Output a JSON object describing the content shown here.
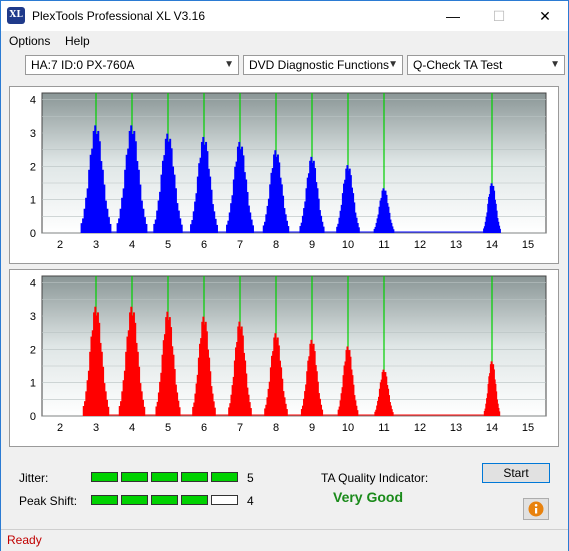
{
  "window": {
    "title": "PlexTools Professional XL V3.16",
    "minimize": "—",
    "maximize": "☐",
    "close": "✕"
  },
  "menu": {
    "options": "Options",
    "help": "Help"
  },
  "selects": {
    "drive": "HA:7 ID:0  PX-760A",
    "function": "DVD Diagnostic Functions",
    "test": "Q-Check TA Test"
  },
  "colors": {
    "top_bars": "#0000ff",
    "bottom_bars": "#ff0000",
    "peak_lines": "#00d000"
  },
  "chart_data": [
    {
      "type": "bar",
      "series_color": "#0000ff",
      "x_ticks": [
        "2",
        "3",
        "4",
        "5",
        "6",
        "7",
        "8",
        "9",
        "10",
        "11",
        "12",
        "13",
        "14",
        "15"
      ],
      "y_ticks": [
        "0",
        "0.5",
        "1",
        "1.5",
        "2",
        "2.5",
        "3",
        "3.5",
        "4"
      ],
      "xlim": [
        1.5,
        15.5
      ],
      "ylim": [
        0,
        4.2
      ],
      "peaks": [
        3,
        4,
        5,
        6,
        7,
        8,
        9,
        10,
        11,
        14
      ],
      "clusters": [
        {
          "x": 3,
          "peak": 3.25,
          "width": 0.4
        },
        {
          "x": 4,
          "peak": 3.25,
          "width": 0.4
        },
        {
          "x": 5,
          "peak": 3.0,
          "width": 0.38
        },
        {
          "x": 6,
          "peak": 2.9,
          "width": 0.36
        },
        {
          "x": 7,
          "peak": 2.75,
          "width": 0.36
        },
        {
          "x": 8,
          "peak": 2.5,
          "width": 0.34
        },
        {
          "x": 9,
          "peak": 2.3,
          "width": 0.32
        },
        {
          "x": 10,
          "peak": 2.05,
          "width": 0.3
        },
        {
          "x": 11,
          "peak": 1.35,
          "width": 0.26
        },
        {
          "x": 14,
          "peak": 1.5,
          "width": 0.22
        }
      ]
    },
    {
      "type": "bar",
      "series_color": "#ff0000",
      "x_ticks": [
        "2",
        "3",
        "4",
        "5",
        "6",
        "7",
        "8",
        "9",
        "10",
        "11",
        "12",
        "13",
        "14",
        "15"
      ],
      "y_ticks": [
        "0",
        "0.5",
        "1",
        "1.5",
        "2",
        "2.5",
        "3",
        "3.5",
        "4"
      ],
      "xlim": [
        1.5,
        15.5
      ],
      "ylim": [
        0,
        4.2
      ],
      "peaks": [
        3,
        4,
        5,
        6,
        7,
        8,
        9,
        10,
        11,
        14
      ],
      "clusters": [
        {
          "x": 3,
          "peak": 3.3,
          "width": 0.34
        },
        {
          "x": 4,
          "peak": 3.3,
          "width": 0.34
        },
        {
          "x": 5,
          "peak": 3.15,
          "width": 0.32
        },
        {
          "x": 6,
          "peak": 3.0,
          "width": 0.3
        },
        {
          "x": 7,
          "peak": 2.85,
          "width": 0.3
        },
        {
          "x": 8,
          "peak": 2.5,
          "width": 0.3
        },
        {
          "x": 9,
          "peak": 2.3,
          "width": 0.28
        },
        {
          "x": 10,
          "peak": 2.1,
          "width": 0.26
        },
        {
          "x": 11,
          "peak": 1.4,
          "width": 0.24
        },
        {
          "x": 14,
          "peak": 1.65,
          "width": 0.2
        }
      ]
    }
  ],
  "results": {
    "jitter_label": "Jitter:",
    "jitter_value": "5",
    "jitter_level": 5,
    "peak_label": "Peak Shift:",
    "peak_value": "4",
    "peak_level": 4,
    "max_level": 5,
    "ta_label": "TA Quality Indicator:",
    "ta_value": "Very Good",
    "start": "Start",
    "info_icon": "info-icon"
  },
  "status": "Ready"
}
